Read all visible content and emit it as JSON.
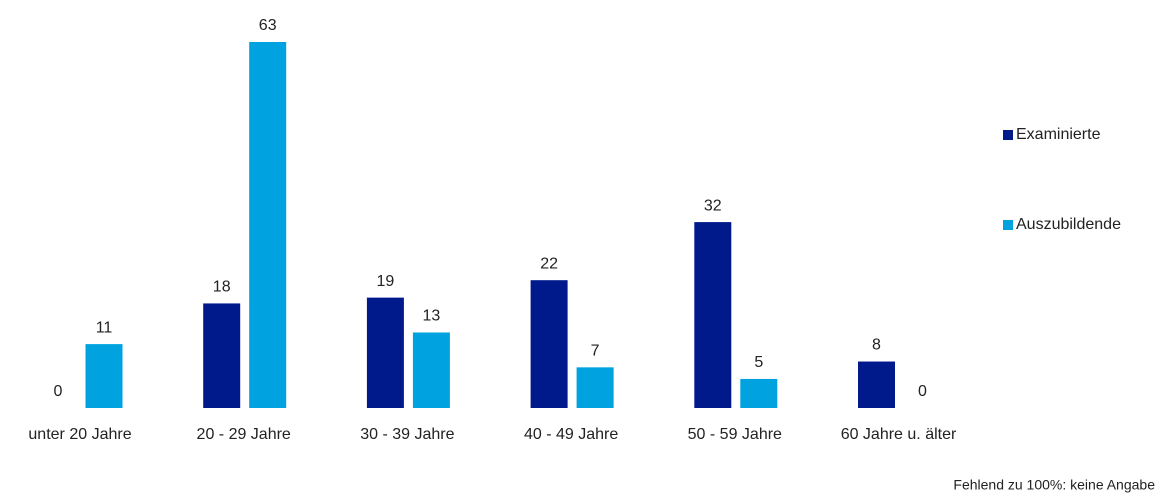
{
  "chart_data": {
    "type": "bar",
    "categories": [
      "unter 20 Jahre",
      "20 - 29 Jahre",
      "30 - 39 Jahre",
      "40 - 49 Jahre",
      "50 - 59 Jahre",
      "60 Jahre u. älter"
    ],
    "series": [
      {
        "name": "Examinierte",
        "color": "#001a8c",
        "values": [
          0,
          18,
          19,
          22,
          32,
          8
        ]
      },
      {
        "name": "Auszubildende",
        "color": "#00a3e0",
        "values": [
          11,
          63,
          13,
          7,
          5,
          0
        ]
      }
    ],
    "legend": "right",
    "footnote": "Fehlend zu 100%: keine Angabe"
  }
}
